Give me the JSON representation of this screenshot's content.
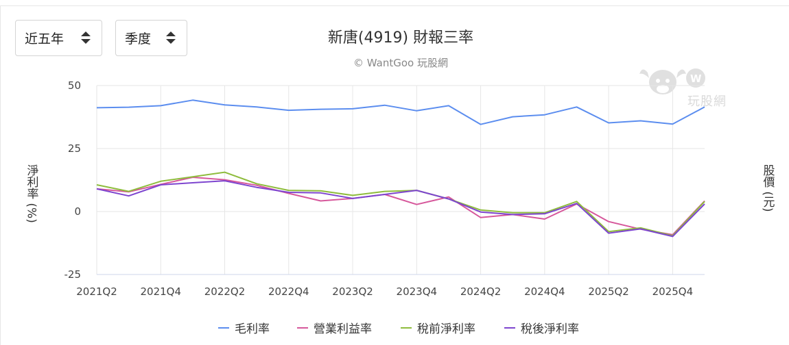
{
  "controls": {
    "period": "近五年",
    "interval": "季度"
  },
  "watermark": "玩股網",
  "chart_data": {
    "type": "line",
    "title": "新唐(4919) 財報三率",
    "subtitle": "© WantGoo 玩股網",
    "ylabel": "淨利率 (%)",
    "ylabel_right": "股價 (元)",
    "ylim": [
      -25,
      50
    ],
    "yticks": [
      50,
      25,
      0,
      -25
    ],
    "grid": true,
    "legend": "bottom",
    "x": [
      "2021Q2",
      "2021Q3",
      "2021Q4",
      "2022Q1",
      "2022Q2",
      "2022Q3",
      "2022Q4",
      "2023Q1",
      "2023Q2",
      "2023Q3",
      "2023Q4",
      "2024Q1",
      "2024Q2",
      "2024Q3",
      "2024Q4",
      "2025Q1",
      "2025Q2",
      "2025Q3",
      "2025Q4",
      "2026Q1"
    ],
    "xtick_labels": [
      "2021Q2",
      "2021Q4",
      "2022Q2",
      "2022Q4",
      "2023Q2",
      "2023Q4",
      "2024Q2",
      "2024Q4",
      "2025Q2",
      "2025Q4"
    ],
    "series": [
      {
        "name": "毛利率",
        "color": "#5b8def",
        "values": [
          41.2,
          41.4,
          42.0,
          44.2,
          42.3,
          41.5,
          40.2,
          40.6,
          40.8,
          42.2,
          40.0,
          42.0,
          34.6,
          37.6,
          38.4,
          41.5,
          35.2,
          36.0,
          34.7,
          41.5
        ]
      },
      {
        "name": "營業利益率",
        "color": "#d6579b",
        "values": [
          9.0,
          7.8,
          10.8,
          13.6,
          12.6,
          10.4,
          7.2,
          4.2,
          5.2,
          6.8,
          2.8,
          5.8,
          -2.4,
          -1.2,
          -3.0,
          3.0,
          -4.0,
          -7.0,
          -9.2,
          4.2
        ]
      },
      {
        "name": "稅前淨利率",
        "color": "#8ebc3c",
        "values": [
          10.6,
          8.0,
          12.0,
          13.8,
          15.6,
          11.0,
          8.4,
          8.2,
          6.4,
          8.0,
          8.4,
          5.0,
          0.6,
          -0.5,
          -0.5,
          4.0,
          -8.0,
          -6.5,
          -9.6,
          4.0
        ]
      },
      {
        "name": "稅後淨利率",
        "color": "#7d45cf",
        "values": [
          9.0,
          6.2,
          10.6,
          11.4,
          12.2,
          9.6,
          7.6,
          7.4,
          5.2,
          6.8,
          8.4,
          5.0,
          -0.2,
          -1.2,
          -0.9,
          3.2,
          -8.6,
          -6.9,
          -9.9,
          3.0
        ]
      }
    ]
  }
}
